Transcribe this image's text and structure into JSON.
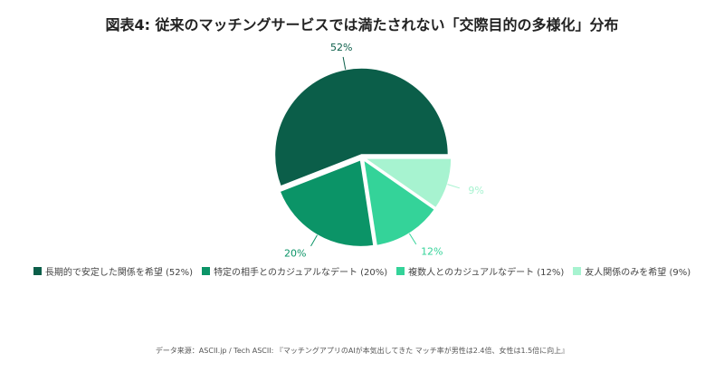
{
  "chart_data": {
    "type": "pie",
    "title": "図表4: 従来のマッチングサービスでは満たされない「交際目的の多様化」分布",
    "categories": [
      "長期的で安定した関係を希望 (52%)",
      "特定の相手とのカジュアルなデート (20%)",
      "複数人とのカジュアルなデート (12%)",
      "友人関係のみを希望 (9%)"
    ],
    "values": [
      52,
      20,
      12,
      9
    ],
    "value_labels": [
      "52%",
      "20%",
      "12%",
      "9%"
    ],
    "colors": [
      "#0b5e49",
      "#0b9467",
      "#34d399",
      "#a7f3d0"
    ],
    "source": "データ来源：ASCII.jp / Tech ASCII: 『マッチングアプリのAIが本気出してきた マッチ率が男性は2.4倍、女性は1.5倍に向上』"
  }
}
